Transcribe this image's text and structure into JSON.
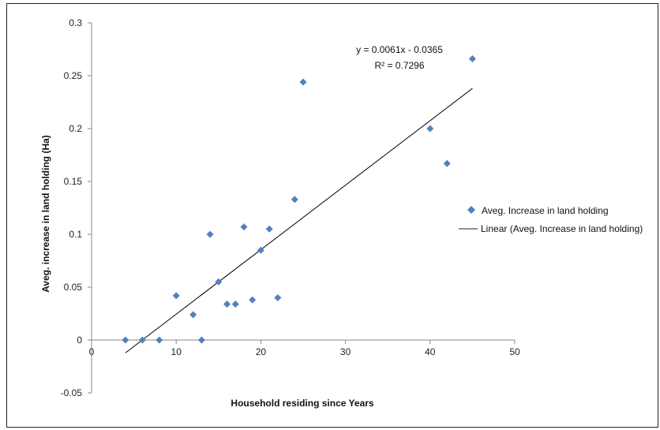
{
  "chart_data": {
    "type": "scatter",
    "title": "",
    "xlabel": "Household residing since Years",
    "ylabel": "Aveg. increase in land holding (Ha)",
    "xlim": [
      0,
      50
    ],
    "ylim": [
      -0.05,
      0.3
    ],
    "xticks": [
      0,
      10,
      20,
      30,
      40,
      50
    ],
    "yticks": [
      -0.05,
      0,
      0.05,
      0.1,
      0.15,
      0.2,
      0.25,
      0.3
    ],
    "xtick_labels": [
      "0",
      "10",
      "20",
      "30",
      "40",
      "50"
    ],
    "ytick_labels": [
      "-0.05",
      "0",
      "0.05",
      "0.1",
      "0.15",
      "0.2",
      "0.25",
      "0.3"
    ],
    "grid": false,
    "legend_position": "right",
    "series": [
      {
        "name": "Aveg. Increase in land holding",
        "marker": "diamond",
        "color": "#4f81bd",
        "points": [
          {
            "x": 4,
            "y": 0
          },
          {
            "x": 6,
            "y": 0
          },
          {
            "x": 8,
            "y": 0
          },
          {
            "x": 10,
            "y": 0.042
          },
          {
            "x": 12,
            "y": 0.024
          },
          {
            "x": 13,
            "y": 0
          },
          {
            "x": 14,
            "y": 0.1
          },
          {
            "x": 15,
            "y": 0.055
          },
          {
            "x": 16,
            "y": 0.034
          },
          {
            "x": 17,
            "y": 0.034
          },
          {
            "x": 18,
            "y": 0.107
          },
          {
            "x": 19,
            "y": 0.038
          },
          {
            "x": 20,
            "y": 0.085
          },
          {
            "x": 21,
            "y": 0.105
          },
          {
            "x": 22,
            "y": 0.04
          },
          {
            "x": 24,
            "y": 0.133
          },
          {
            "x": 25,
            "y": 0.244
          },
          {
            "x": 40,
            "y": 0.2
          },
          {
            "x": 42,
            "y": 0.167
          },
          {
            "x": 45,
            "y": 0.266
          }
        ]
      }
    ],
    "trendline": {
      "name": "Linear (Aveg. Increase in land holding)",
      "type": "linear",
      "slope": 0.0061,
      "intercept": -0.0365,
      "x_range": [
        4,
        45
      ],
      "color": "#000000",
      "equation_label": "y = 0.0061x - 0.0365",
      "r2_label": "R² = 0.7296"
    }
  }
}
